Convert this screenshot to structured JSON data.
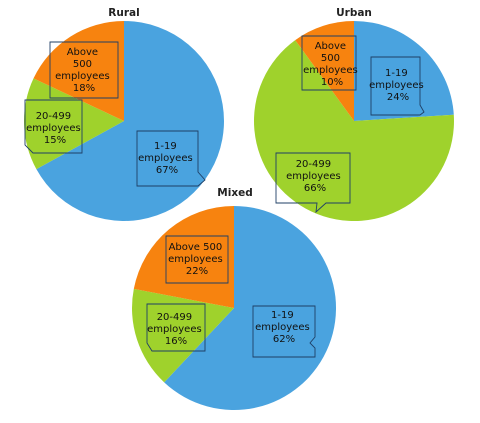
{
  "colors": {
    "small": "#4aa3df",
    "medium": "#9fd22c",
    "large": "#f7830f"
  },
  "chart_data": [
    {
      "type": "pie",
      "title": "Rural",
      "categories": [
        "1-19 employees",
        "20-499 employees",
        "Above 500 employees"
      ],
      "values": [
        67,
        15,
        18
      ],
      "label_lines": [
        [
          "1-19",
          "employees",
          "67%"
        ],
        [
          "20-499",
          "employees",
          "15%"
        ],
        [
          "Above",
          "500",
          "employees",
          "18%"
        ]
      ]
    },
    {
      "type": "pie",
      "title": "Urban",
      "categories": [
        "1-19 employees",
        "20-499 employees",
        "Above 500 employees"
      ],
      "values": [
        24,
        66,
        10
      ],
      "label_lines": [
        [
          "1-19",
          "employees",
          "24%"
        ],
        [
          "20-499",
          "employees",
          "66%"
        ],
        [
          "Above",
          "500",
          "employees",
          "10%"
        ]
      ]
    },
    {
      "type": "pie",
      "title": "Mixed",
      "categories": [
        "1-19 employees",
        "20-499 employees",
        "Above 500 employees"
      ],
      "values": [
        62,
        16,
        22
      ],
      "label_lines": [
        [
          "1-19",
          "employees",
          "62%"
        ],
        [
          "20-499",
          "employees",
          "16%"
        ],
        [
          "Above 500",
          "employees",
          "22%"
        ]
      ]
    }
  ]
}
